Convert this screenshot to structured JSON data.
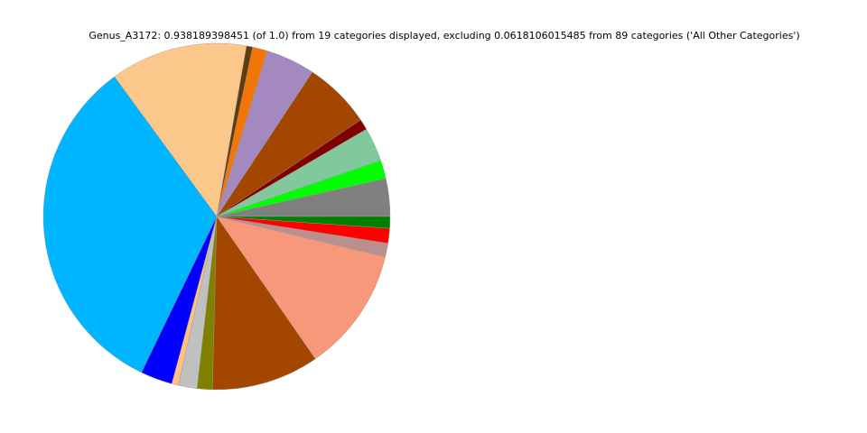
{
  "chart_data": {
    "type": "pie",
    "title": "Genus_A3172: 0.938189398451 (of 1.0) from 19 categories displayed, excluding 0.0618106015485 from 89 categories ('All Other Categories')",
    "start_angle_deg": 0,
    "direction": "counterclockwise",
    "legend": "none",
    "slices": [
      {
        "value": 0.0331,
        "color": "#808080"
      },
      {
        "value": 0.0162,
        "color": "#00ff00"
      },
      {
        "value": 0.0297,
        "color": "#81c99c"
      },
      {
        "value": 0.0094,
        "color": "#800000"
      },
      {
        "value": 0.0589,
        "color": "#a34700"
      },
      {
        "value": 0.043,
        "color": "#a389bf"
      },
      {
        "value": 0.013,
        "color": "#f27507"
      },
      {
        "value": 0.0055,
        "color": "#633c0d"
      },
      {
        "value": 0.1199,
        "color": "#fcc78a"
      },
      {
        "value": 0.3077,
        "color": "#00b5ff"
      },
      {
        "value": 0.0279,
        "color": "#0000ff"
      },
      {
        "value": 0.0057,
        "color": "#ffc080"
      },
      {
        "value": 0.0164,
        "color": "#c0c0c0"
      },
      {
        "value": 0.0133,
        "color": "#808000"
      },
      {
        "value": 0.0941,
        "color": "#a34700"
      },
      {
        "value": 0.1089,
        "color": "#f8987b"
      },
      {
        "value": 0.012,
        "color": "#bc8f8f"
      },
      {
        "value": 0.013,
        "color": "#ff0000"
      },
      {
        "value": 0.0102,
        "color": "#008000"
      }
    ]
  }
}
